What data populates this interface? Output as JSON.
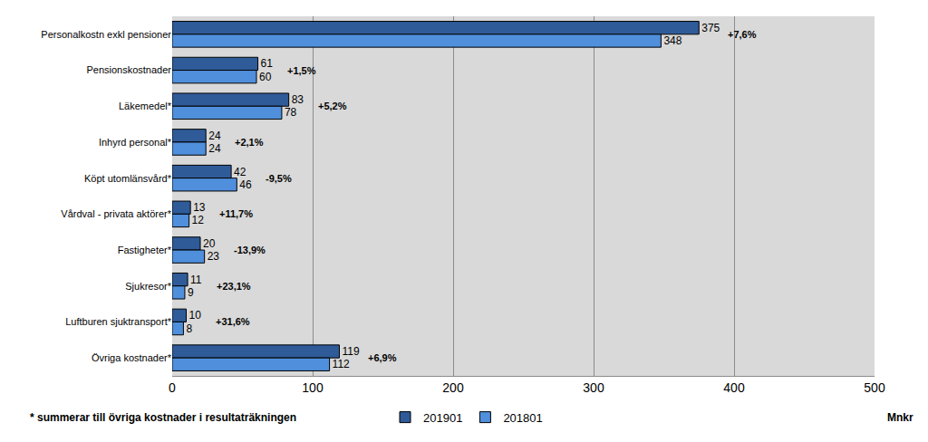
{
  "chart_data": {
    "type": "bar",
    "orientation": "horizontal",
    "categories": [
      "Personalkostn exkl pensioner",
      "Pensionskostnader",
      "Läkemedel*",
      "Inhyrd personal*",
      "Köpt utomlänsvård*",
      "Vårdval - privata aktörer*",
      "Fastigheter*",
      "Sjukresor*",
      "Luftburen sjuktransport*",
      "Övriga kostnader*"
    ],
    "series": [
      {
        "name": "201901",
        "color": "#2f5b98",
        "values": [
          375,
          61,
          83,
          24,
          42,
          13,
          20,
          11,
          10,
          119
        ]
      },
      {
        "name": "201801",
        "color": "#4f8fdc",
        "values": [
          348,
          60,
          78,
          24,
          46,
          12,
          23,
          9,
          8,
          112
        ]
      }
    ],
    "change_labels": [
      "+7,6%",
      "+1,5%",
      "+5,2%",
      "+2,1%",
      "-9,5%",
      "+11,7%",
      "-13,9%",
      "+23,1%",
      "+31,6%",
      "+6,9%"
    ],
    "x_label": "Mnkr",
    "footnote": "* summerar till övriga kostnader i resultaträkningen",
    "xlim": [
      0,
      500
    ],
    "xticks": [
      0,
      100,
      200,
      300,
      400,
      500
    ],
    "grid": true,
    "legend": "bottom",
    "data_labels": true
  }
}
